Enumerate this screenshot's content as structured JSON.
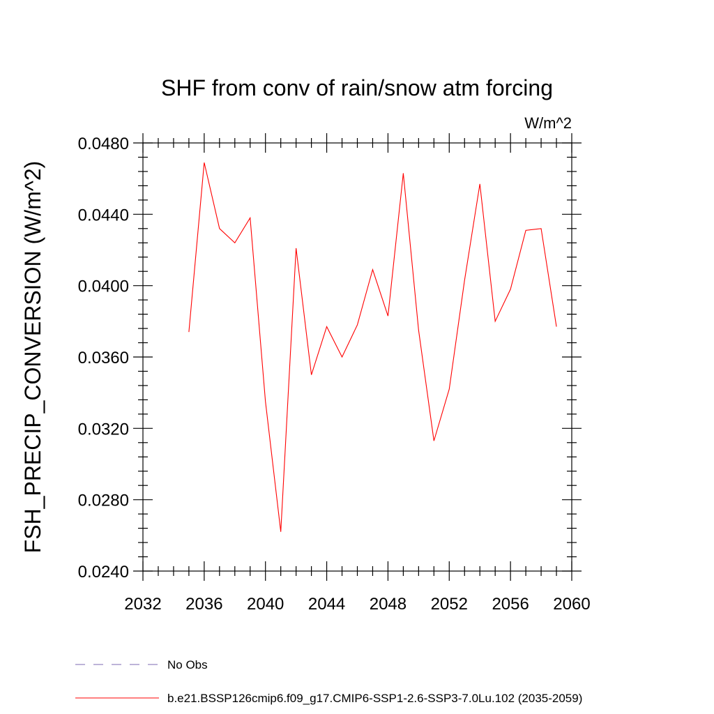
{
  "chart_data": {
    "type": "line",
    "title": "SHF from conv of rain/snow atm forcing",
    "units": "W/m^2",
    "xlabel": "",
    "ylabel": "FSH_PRECIP_CONVERSION  (W/m^2)",
    "xlim": [
      2032,
      2060
    ],
    "ylim": [
      0.024,
      0.048
    ],
    "x_ticks": [
      2032,
      2036,
      2040,
      2044,
      2048,
      2052,
      2056,
      2060
    ],
    "x_tick_labels": [
      "2032",
      "2036",
      "2040",
      "2044",
      "2048",
      "2052",
      "2056",
      "2060"
    ],
    "y_ticks": [
      0.024,
      0.028,
      0.032,
      0.036,
      0.04,
      0.044,
      0.048
    ],
    "y_tick_labels": [
      "0.0240",
      "0.0280",
      "0.0320",
      "0.0360",
      "0.0400",
      "0.0440",
      "0.0480"
    ],
    "grid": false,
    "legend_placement": "bottom",
    "x": [
      2035,
      2036,
      2037,
      2038,
      2039,
      2040,
      2041,
      2042,
      2043,
      2044,
      2045,
      2046,
      2047,
      2048,
      2049,
      2050,
      2051,
      2052,
      2053,
      2054,
      2055,
      2056,
      2057,
      2058,
      2059
    ],
    "series": [
      {
        "name": "b.e21.BSSP126cmip6.f09_g17.CMIP6-SSP1-2.6-SSP3-7.0Lu.102 (2035-2059)",
        "color": "#ff0000",
        "values": [
          0.0374,
          0.0469,
          0.0432,
          0.0424,
          0.0438,
          0.0335,
          0.0262,
          0.0421,
          0.035,
          0.0377,
          0.036,
          0.0378,
          0.0409,
          0.0383,
          0.0463,
          0.0375,
          0.0313,
          0.0342,
          0.0403,
          0.0457,
          0.038,
          0.0398,
          0.0431,
          0.0432,
          0.0377
        ]
      }
    ],
    "legend": [
      {
        "label": "No Obs",
        "color": "#7b68b0",
        "style": "dashed"
      },
      {
        "label": "b.e21.BSSP126cmip6.f09_g17.CMIP6-SSP1-2.6-SSP3-7.0Lu.102 (2035-2059)",
        "color": "#ff0000",
        "style": "solid"
      }
    ]
  }
}
